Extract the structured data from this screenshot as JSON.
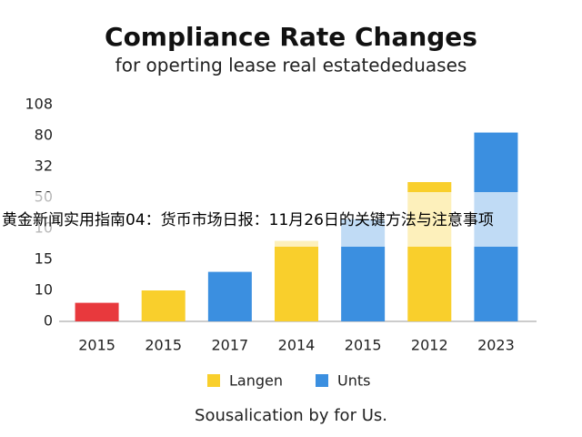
{
  "chart_data": {
    "type": "bar",
    "title": "Compliance Rate Changes",
    "subtitle": "for operting lease real estatededuases",
    "categories": [
      "2015",
      "2015",
      "2017",
      "2014",
      "2015",
      "2012",
      "2023"
    ],
    "values": [
      0.6,
      1.0,
      1.6,
      2.6,
      3.3,
      4.5,
      6.1
    ],
    "colors": [
      "#e8393d",
      "#f9cf2c",
      "#3b8fe0",
      "#f9cf2c",
      "#3b8fe0",
      "#f9cf2c",
      "#3b8fe0"
    ],
    "ylim": [
      0,
      7
    ],
    "yticks": [
      {
        "value": 0,
        "label": "0"
      },
      {
        "value": 1,
        "label": "10"
      },
      {
        "value": 2,
        "label": "15"
      },
      {
        "value": 3,
        "label": "10"
      },
      {
        "value": 4,
        "label": "50"
      },
      {
        "value": 5,
        "label": "32"
      },
      {
        "value": 6,
        "label": "80"
      },
      {
        "value": 7,
        "label": "108"
      }
    ],
    "grid": false,
    "legend": [
      {
        "name": "Langen",
        "color": "#f9cf2c"
      },
      {
        "name": "Unts",
        "color": "#3b8fe0"
      }
    ],
    "footer": "Sousalication by for Us."
  },
  "banner": "黄金新闻实用指南04：货币市场日报：11月26日的关键方法与注意事项"
}
